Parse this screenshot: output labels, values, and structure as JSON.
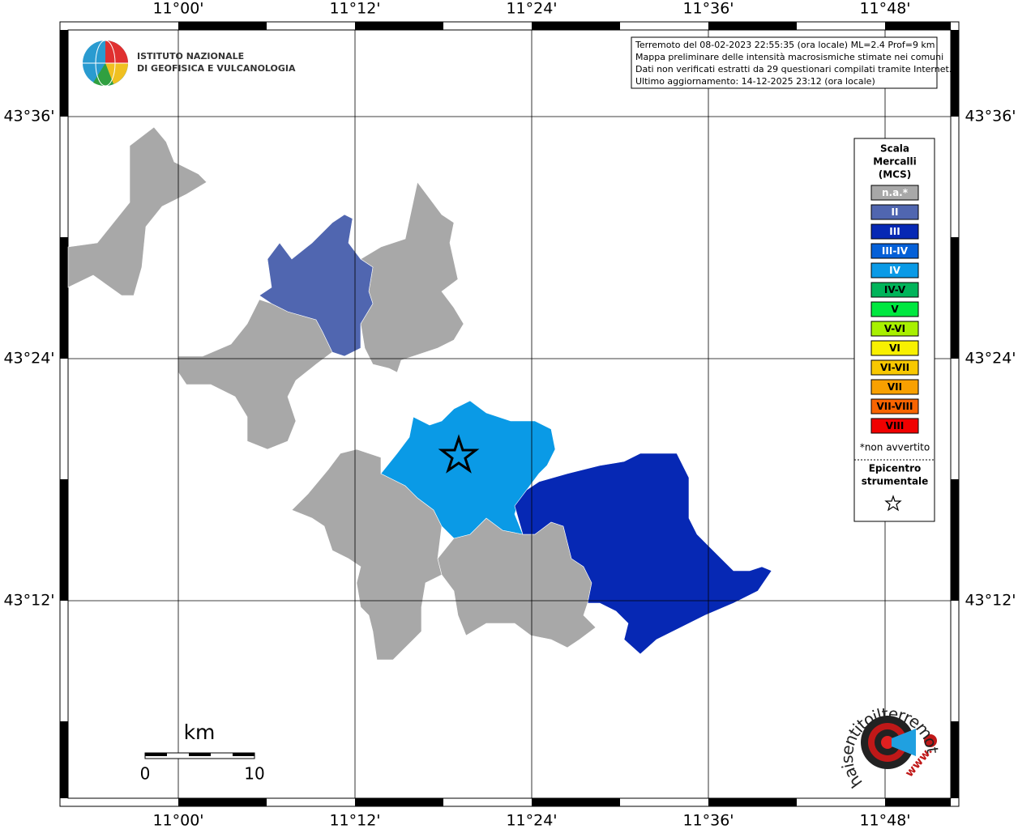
{
  "logo": {
    "line1": "ISTITUTO NAZIONALE",
    "line2": "DI GEOFISICA E VULCANOLOGIA"
  },
  "info": [
    "Terremoto del 08-02-2023 22:55:35 (ora locale) ML=2.4 Prof=9 km",
    "Mappa preliminare delle intensità macrosismiche stimate nei comuni",
    "Dati non verificati estratti da 29 questionari compilati tramite Internet.",
    "Ultimo aggiornamento: 14-12-2025 23:12 (ora locale)"
  ],
  "axes": {
    "longitude": [
      "11°00'",
      "11°12'",
      "11°24'",
      "11°36'",
      "11°48'"
    ],
    "latitude": [
      "43°36'",
      "43°24'",
      "43°12'"
    ]
  },
  "legend": {
    "title": [
      "Scala",
      "Mercalli",
      "(MCS)"
    ],
    "items": [
      {
        "label": "n.a.*",
        "color": "#a8a8a8"
      },
      {
        "label": "II",
        "color": "#5066b0"
      },
      {
        "label": "III",
        "color": "#0628b4"
      },
      {
        "label": "III-IV",
        "color": "#0560d8"
      },
      {
        "label": "IV",
        "color": "#0a9ae6"
      },
      {
        "label": "IV-V",
        "color": "#00b45a"
      },
      {
        "label": "V",
        "color": "#00e840"
      },
      {
        "label": "V-VI",
        "color": "#a8f000"
      },
      {
        "label": "VI",
        "color": "#f8f000"
      },
      {
        "label": "VI-VII",
        "color": "#f8c800"
      },
      {
        "label": "VII",
        "color": "#f8a000"
      },
      {
        "label": "VII-VIII",
        "color": "#f86400"
      },
      {
        "label": "VIII",
        "color": "#f00000"
      }
    ],
    "note": "*non avvertito",
    "epicenter": [
      "Epicentro",
      "strumentale"
    ]
  },
  "scale_bar": {
    "unit": "km",
    "labels": [
      "0",
      "10"
    ]
  },
  "badge": {
    "text": "haisentitoilterremoto.it",
    "www": "www."
  }
}
